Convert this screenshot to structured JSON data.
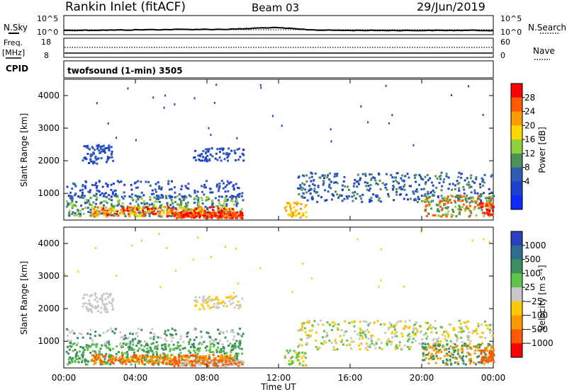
{
  "header": {
    "station": "Rankin Inlet (fitACF)",
    "beam": "Beam 03",
    "date": "29/Jun/2019"
  },
  "noise_panel": {
    "left_label": "N.Sky",
    "right_label": "N.Search",
    "left_ticks": [
      "10^5",
      "10^0"
    ],
    "right_ticks": [
      "10^5",
      "10^0"
    ]
  },
  "freq_panel": {
    "left_label_1": "Freq.",
    "left_label_2": "[MHz]",
    "right_label": "Nave",
    "left_ticks": [
      "18",
      "8"
    ],
    "right_ticks": [
      "60",
      "0"
    ]
  },
  "cpid": {
    "label": "CPID",
    "text": "twofsound (1-min) 3505"
  },
  "chart_data": [
    {
      "type": "heatmap",
      "name": "Power",
      "ylabel": "Slant Range [km]",
      "ylim": [
        180,
        4500
      ],
      "yticks": [
        1000,
        2000,
        3000,
        4000
      ],
      "colorbar": {
        "label": "Power [dB]",
        "ticks": [
          "28",
          "24",
          "20",
          "16",
          "12",
          "8",
          "4"
        ],
        "colors": [
          "#ff0000",
          "#ff5a00",
          "#ff9b00",
          "#ffd700",
          "#8fd13d",
          "#4f8f5a",
          "#2e5cb8",
          "#1e3fd0",
          "#0b2bff"
        ]
      }
    },
    {
      "type": "heatmap",
      "name": "Velocity",
      "ylabel": "Slant Range [km]",
      "ylim": [
        180,
        4500
      ],
      "yticks": [
        1000,
        2000,
        3000,
        4000
      ],
      "colorbar": {
        "label": "Velocity [m s⁻¹]",
        "ticks": [
          "1000",
          "500",
          "100",
          "25",
          "−25",
          "−100",
          "−500",
          "−1000"
        ],
        "colors": [
          "#2a3fc2",
          "#2e6e90",
          "#3c8f5e",
          "#5ec44a",
          "#c8c8c8",
          "#ffc800",
          "#ff9900",
          "#ff5a00",
          "#ff0000"
        ]
      }
    }
  ],
  "x_axis": {
    "label": "Time UT",
    "ticks": [
      "00:00",
      "04:00",
      "08:00",
      "12:00",
      "16:00",
      "20:00",
      "00:00"
    ],
    "range_hours": [
      0,
      24
    ]
  },
  "colors": {
    "ground": "#ff0000",
    "ionosphere_blue": "#1e3fd0"
  }
}
